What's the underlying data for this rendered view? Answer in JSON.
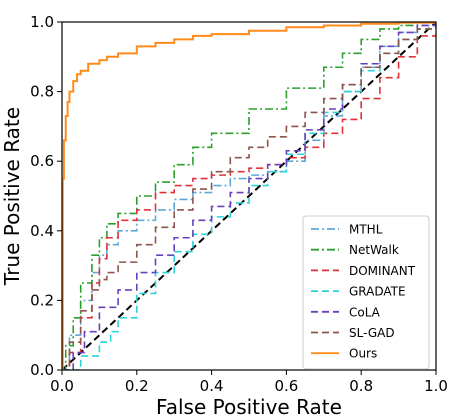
{
  "chart_data": {
    "type": "line",
    "xlabel": "False Positive Rate",
    "ylabel": "True Positive Rate",
    "xlim": [
      0,
      1
    ],
    "ylim": [
      0,
      1
    ],
    "x_ticks": [
      "0.0",
      "0.2",
      "0.4",
      "0.6",
      "0.8",
      "1.0"
    ],
    "y_ticks": [
      "0.0",
      "0.2",
      "0.4",
      "0.6",
      "0.8",
      "1.0"
    ],
    "grid": false,
    "legend_position": "lower-right",
    "diagonal": {
      "style": "black dashed",
      "x": [
        0,
        1
      ],
      "y": [
        0,
        1
      ]
    },
    "series": [
      {
        "name": "MTHL",
        "color": "#5fa8d8",
        "dash": "dashdot",
        "x": [
          0,
          0.02,
          0.05,
          0.08,
          0.1,
          0.12,
          0.15,
          0.2,
          0.25,
          0.3,
          0.35,
          0.4,
          0.45,
          0.5,
          0.55,
          0.6,
          0.65,
          0.7,
          0.75,
          0.8,
          0.85,
          0.9,
          0.95,
          1.0
        ],
        "y": [
          0,
          0.1,
          0.2,
          0.28,
          0.33,
          0.36,
          0.4,
          0.43,
          0.46,
          0.49,
          0.51,
          0.53,
          0.55,
          0.56,
          0.57,
          0.6,
          0.66,
          0.73,
          0.8,
          0.87,
          0.93,
          0.97,
          0.99,
          1.0
        ]
      },
      {
        "name": "NetWalk",
        "color": "#2ca02c",
        "dash": "dashdot",
        "x": [
          0,
          0.01,
          0.03,
          0.05,
          0.08,
          0.1,
          0.12,
          0.15,
          0.2,
          0.25,
          0.3,
          0.35,
          0.4,
          0.5,
          0.6,
          0.7,
          0.75,
          0.8,
          0.85,
          0.9,
          0.95,
          1.0
        ],
        "y": [
          0,
          0.07,
          0.15,
          0.25,
          0.33,
          0.38,
          0.42,
          0.45,
          0.5,
          0.54,
          0.59,
          0.64,
          0.68,
          0.75,
          0.81,
          0.87,
          0.91,
          0.95,
          0.98,
          0.99,
          1.0,
          1.0
        ]
      },
      {
        "name": "DOMINANT",
        "color": "#e0303a",
        "dash": "dashed",
        "x": [
          0,
          0.02,
          0.05,
          0.08,
          0.1,
          0.12,
          0.15,
          0.2,
          0.25,
          0.3,
          0.35,
          0.4,
          0.45,
          0.5,
          0.55,
          0.6,
          0.65,
          0.7,
          0.75,
          0.8,
          0.85,
          0.9,
          0.95,
          1.0
        ],
        "y": [
          0,
          0.05,
          0.15,
          0.25,
          0.32,
          0.38,
          0.43,
          0.46,
          0.51,
          0.53,
          0.55,
          0.56,
          0.57,
          0.58,
          0.59,
          0.61,
          0.64,
          0.68,
          0.72,
          0.78,
          0.84,
          0.9,
          0.96,
          1.0
        ]
      },
      {
        "name": "GRADATE",
        "color": "#2ad4d8",
        "dash": "dashed",
        "x": [
          0,
          0.05,
          0.1,
          0.13,
          0.15,
          0.2,
          0.25,
          0.3,
          0.35,
          0.4,
          0.45,
          0.5,
          0.55,
          0.6,
          0.65,
          0.7,
          0.75,
          0.8,
          0.85,
          0.9,
          0.95,
          1.0
        ],
        "y": [
          0,
          0.04,
          0.08,
          0.11,
          0.15,
          0.22,
          0.28,
          0.34,
          0.39,
          0.44,
          0.48,
          0.53,
          0.57,
          0.62,
          0.68,
          0.74,
          0.8,
          0.86,
          0.91,
          0.95,
          0.98,
          1.0
        ]
      },
      {
        "name": "CoLA",
        "color": "#6a3fbf",
        "dash": "dashed",
        "x": [
          0,
          0.03,
          0.06,
          0.1,
          0.15,
          0.2,
          0.25,
          0.3,
          0.35,
          0.4,
          0.45,
          0.5,
          0.55,
          0.6,
          0.65,
          0.7,
          0.75,
          0.8,
          0.85,
          0.9,
          0.95,
          1.0
        ],
        "y": [
          0,
          0.05,
          0.11,
          0.18,
          0.23,
          0.28,
          0.33,
          0.38,
          0.43,
          0.47,
          0.51,
          0.55,
          0.59,
          0.63,
          0.69,
          0.75,
          0.82,
          0.88,
          0.93,
          0.97,
          0.99,
          1.0
        ]
      },
      {
        "name": "SL-GAD",
        "color": "#8c564b",
        "dash": "dashed",
        "x": [
          0,
          0.02,
          0.05,
          0.08,
          0.1,
          0.12,
          0.15,
          0.2,
          0.25,
          0.3,
          0.35,
          0.4,
          0.45,
          0.5,
          0.55,
          0.6,
          0.65,
          0.7,
          0.75,
          0.8,
          0.85,
          0.9,
          0.95,
          1.0
        ],
        "y": [
          0,
          0.08,
          0.17,
          0.23,
          0.26,
          0.28,
          0.31,
          0.36,
          0.41,
          0.46,
          0.52,
          0.57,
          0.61,
          0.64,
          0.67,
          0.7,
          0.74,
          0.78,
          0.82,
          0.87,
          0.91,
          0.95,
          0.98,
          1.0
        ]
      },
      {
        "name": "Ours",
        "color": "#ff8c1a",
        "dash": "solid",
        "x": [
          0,
          0.002,
          0.005,
          0.01,
          0.015,
          0.02,
          0.03,
          0.04,
          0.05,
          0.07,
          0.1,
          0.12,
          0.15,
          0.2,
          0.25,
          0.3,
          0.35,
          0.4,
          0.5,
          0.6,
          0.7,
          0.8,
          0.9,
          1.0
        ],
        "y": [
          0,
          0.55,
          0.66,
          0.73,
          0.77,
          0.8,
          0.83,
          0.85,
          0.86,
          0.88,
          0.89,
          0.9,
          0.91,
          0.93,
          0.94,
          0.95,
          0.96,
          0.965,
          0.975,
          0.985,
          0.99,
          0.995,
          0.998,
          1.0
        ]
      }
    ]
  }
}
